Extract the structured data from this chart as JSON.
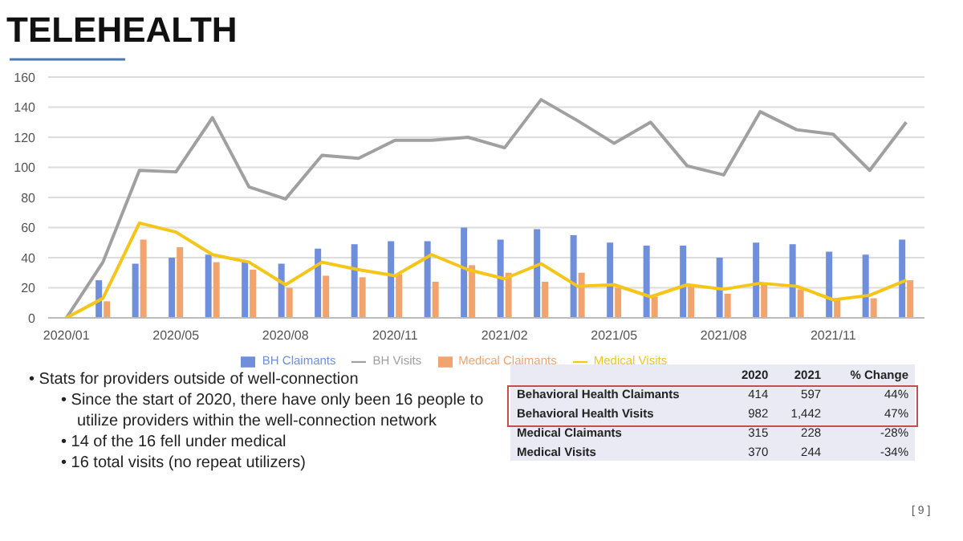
{
  "chart_data": [
    {
      "type": "bar",
      "title": "TELEHEALTH",
      "categories": [
        "2020/01",
        null,
        null,
        "2020/05",
        null,
        null,
        "2020/08",
        null,
        null,
        "2020/11",
        null,
        null,
        "2021/02",
        null,
        null,
        "2021/05",
        null,
        null,
        "2021/08",
        null,
        null,
        "2021/11",
        null,
        null
      ],
      "series": [
        {
          "name": "BH Claimants",
          "type": "bar",
          "color": "#6f8fdc",
          "values": [
            0,
            25,
            36,
            40,
            42,
            37,
            36,
            46,
            49,
            51,
            51,
            60,
            52,
            59,
            55,
            50,
            48,
            48,
            40,
            50,
            49,
            44,
            42,
            52
          ]
        },
        {
          "name": "Medical Claimants",
          "type": "bar",
          "color": "#f2a46e",
          "values": [
            0,
            11,
            52,
            47,
            37,
            32,
            20,
            28,
            27,
            29,
            24,
            35,
            30,
            24,
            30,
            20,
            14,
            21,
            16,
            22,
            19,
            12,
            13,
            25
          ]
        },
        {
          "name": "BH Visits",
          "type": "line",
          "color": "#a0a0a0",
          "values": [
            0,
            37,
            98,
            97,
            133,
            87,
            79,
            108,
            106,
            118,
            118,
            120,
            113,
            145,
            131,
            116,
            130,
            101,
            95,
            137,
            125,
            122,
            98,
            130
          ]
        },
        {
          "name": "Medical Visits",
          "type": "line",
          "color": "#f5c518",
          "values": [
            0,
            13,
            63,
            57,
            42,
            37,
            22,
            37,
            32,
            28,
            42,
            32,
            26,
            36,
            21,
            22,
            14,
            22,
            19,
            23,
            21,
            12,
            15,
            25
          ]
        }
      ],
      "ylim": [
        0,
        160
      ],
      "yticks": [
        0,
        20,
        40,
        60,
        80,
        100,
        120,
        140,
        160
      ],
      "grid": "y",
      "legend": "bottom",
      "marker": "none",
      "annotations": [
        "• Stats for providers outside of well-connection",
        "• Since the start of 2020, there have only been 16 people to utilize providers within the well-connection network",
        "• 14 of the 16 fell under medical",
        "• 16 total visits (no repeat utilizers)"
      ]
    },
    {
      "type": "other",
      "categories": [
        "Behavioral Health Claimants",
        "Behavioral Health Visits",
        "Medical Claimants",
        "Medical Visits"
      ],
      "series": [
        {
          "name": "2020",
          "values": [
            414,
            982,
            315,
            370
          ],
          "value_labels": [
            "414",
            "982",
            "315",
            "370"
          ]
        },
        {
          "name": "2021",
          "values": [
            597,
            1442,
            228,
            244
          ],
          "value_labels": [
            "597",
            "1,442",
            "228",
            "244"
          ]
        },
        {
          "name": "% Change",
          "values": [
            44,
            47,
            -28,
            -34
          ],
          "value_labels": [
            "44%",
            "47%",
            "-28%",
            "-34%"
          ]
        }
      ],
      "annotations": [
        "[ 9 ]"
      ]
    }
  ]
}
